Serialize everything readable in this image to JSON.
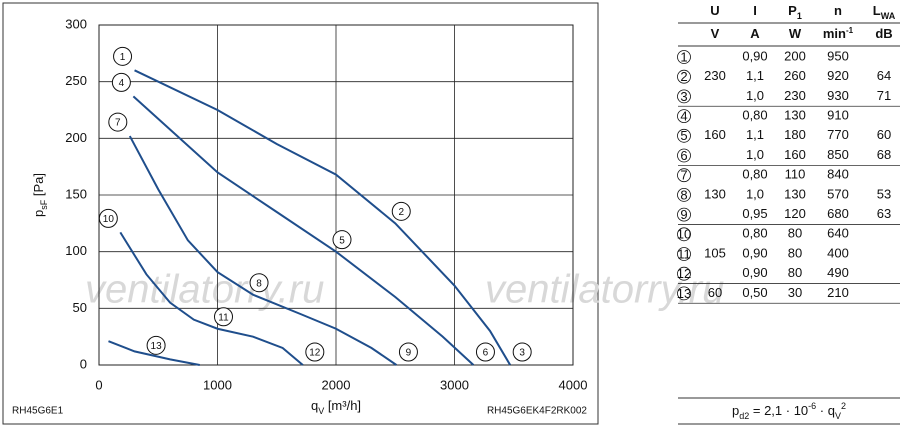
{
  "chart_data": {
    "type": "line",
    "x_label": [
      {
        "text": "q"
      },
      {
        "text": "V",
        "sub": true
      },
      {
        "text": " [m³/h]"
      }
    ],
    "y_label": [
      {
        "text": "p"
      },
      {
        "text": "sF",
        "sub": true
      },
      {
        "text": " [Pa]"
      }
    ],
    "xlim": [
      0,
      4000
    ],
    "xticks": [
      0,
      1000,
      2000,
      3000,
      4000
    ],
    "ylim": [
      0,
      300
    ],
    "yticks": [
      0,
      50,
      100,
      150,
      200,
      250,
      300
    ],
    "grid": true,
    "watermark": "ventilatorry.ru",
    "left_note": "RH45G6E1",
    "right_note": "RH45G6EK4F2RK002",
    "series": [
      {
        "color": "#1f4e8c",
        "labels": [
          "1",
          "2",
          "3"
        ],
        "x": [
          300,
          1000,
          1500,
          2000,
          2500,
          3000,
          3300,
          3470
        ],
        "values": [
          260,
          225,
          195,
          168,
          125,
          70,
          30,
          0
        ]
      },
      {
        "color": "#1f4e8c",
        "labels": [
          "4",
          "5",
          "6"
        ],
        "x": [
          290,
          1000,
          1500,
          2000,
          2500,
          2900,
          3160
        ],
        "values": [
          237,
          170,
          135,
          100,
          60,
          25,
          0
        ]
      },
      {
        "color": "#1f4e8c",
        "labels": [
          "7",
          "8",
          "9"
        ],
        "x": [
          260,
          500,
          750,
          1000,
          1300,
          1700,
          2000,
          2300,
          2510
        ],
        "values": [
          202,
          155,
          110,
          82,
          62,
          45,
          32,
          15,
          0
        ]
      },
      {
        "color": "#1f4e8c",
        "labels": [
          "10",
          "11",
          "12"
        ],
        "x": [
          180,
          400,
          600,
          800,
          1000,
          1300,
          1550,
          1720
        ],
        "values": [
          117,
          80,
          55,
          40,
          32,
          25,
          15,
          0
        ]
      },
      {
        "color": "#1f4e8c",
        "labels": [
          "13"
        ],
        "x": [
          80,
          300,
          600,
          850
        ],
        "values": [
          21,
          12,
          5,
          0
        ]
      }
    ]
  },
  "table": {
    "header": [
      {
        "text": "U"
      },
      {
        "text": "I"
      },
      {
        "text": "P",
        "sub": "1"
      },
      {
        "text": "n"
      },
      {
        "text": "L",
        "sub": "WA"
      }
    ],
    "units": [
      {
        "text": "V"
      },
      {
        "text": "A"
      },
      {
        "text": "W"
      },
      {
        "text": "min",
        "sup": "-1"
      },
      {
        "text": "dB"
      }
    ],
    "groups": [
      {
        "u": "230",
        "rows": [
          [
            "1",
            "0,90",
            "200",
            "950",
            null
          ],
          [
            "2",
            "1,1",
            "260",
            "920",
            "64"
          ],
          [
            "3",
            "1,0",
            "230",
            "930",
            "71"
          ]
        ]
      },
      {
        "u": "160",
        "rows": [
          [
            "4",
            "0,80",
            "130",
            "910",
            null
          ],
          [
            "5",
            "1,1",
            "180",
            "770",
            "60"
          ],
          [
            "6",
            "1,0",
            "160",
            "850",
            "68"
          ]
        ]
      },
      {
        "u": "130",
        "rows": [
          [
            "7",
            "0,80",
            "110",
            "840",
            null
          ],
          [
            "8",
            "1,0",
            "130",
            "570",
            "53"
          ],
          [
            "9",
            "0,95",
            "120",
            "680",
            "63"
          ]
        ]
      },
      {
        "u": "105",
        "rows": [
          [
            "10",
            "0,80",
            "80",
            "640",
            null
          ],
          [
            "11",
            "0,90",
            "80",
            "400",
            null
          ],
          [
            "12",
            "0,90",
            "80",
            "490",
            null
          ]
        ]
      },
      {
        "u": "60",
        "rows": [
          [
            "13",
            "0,50",
            "30",
            "210",
            null
          ]
        ]
      }
    ],
    "formula": [
      {
        "text": "p"
      },
      {
        "text": "d2",
        "sub": true
      },
      {
        "text": " = 2,1 · 10"
      },
      {
        "text": "-6",
        "sup": true
      },
      {
        "text": " · q"
      },
      {
        "text": "V",
        "sub": true
      },
      {
        "text": "2",
        "sup": true
      }
    ]
  }
}
